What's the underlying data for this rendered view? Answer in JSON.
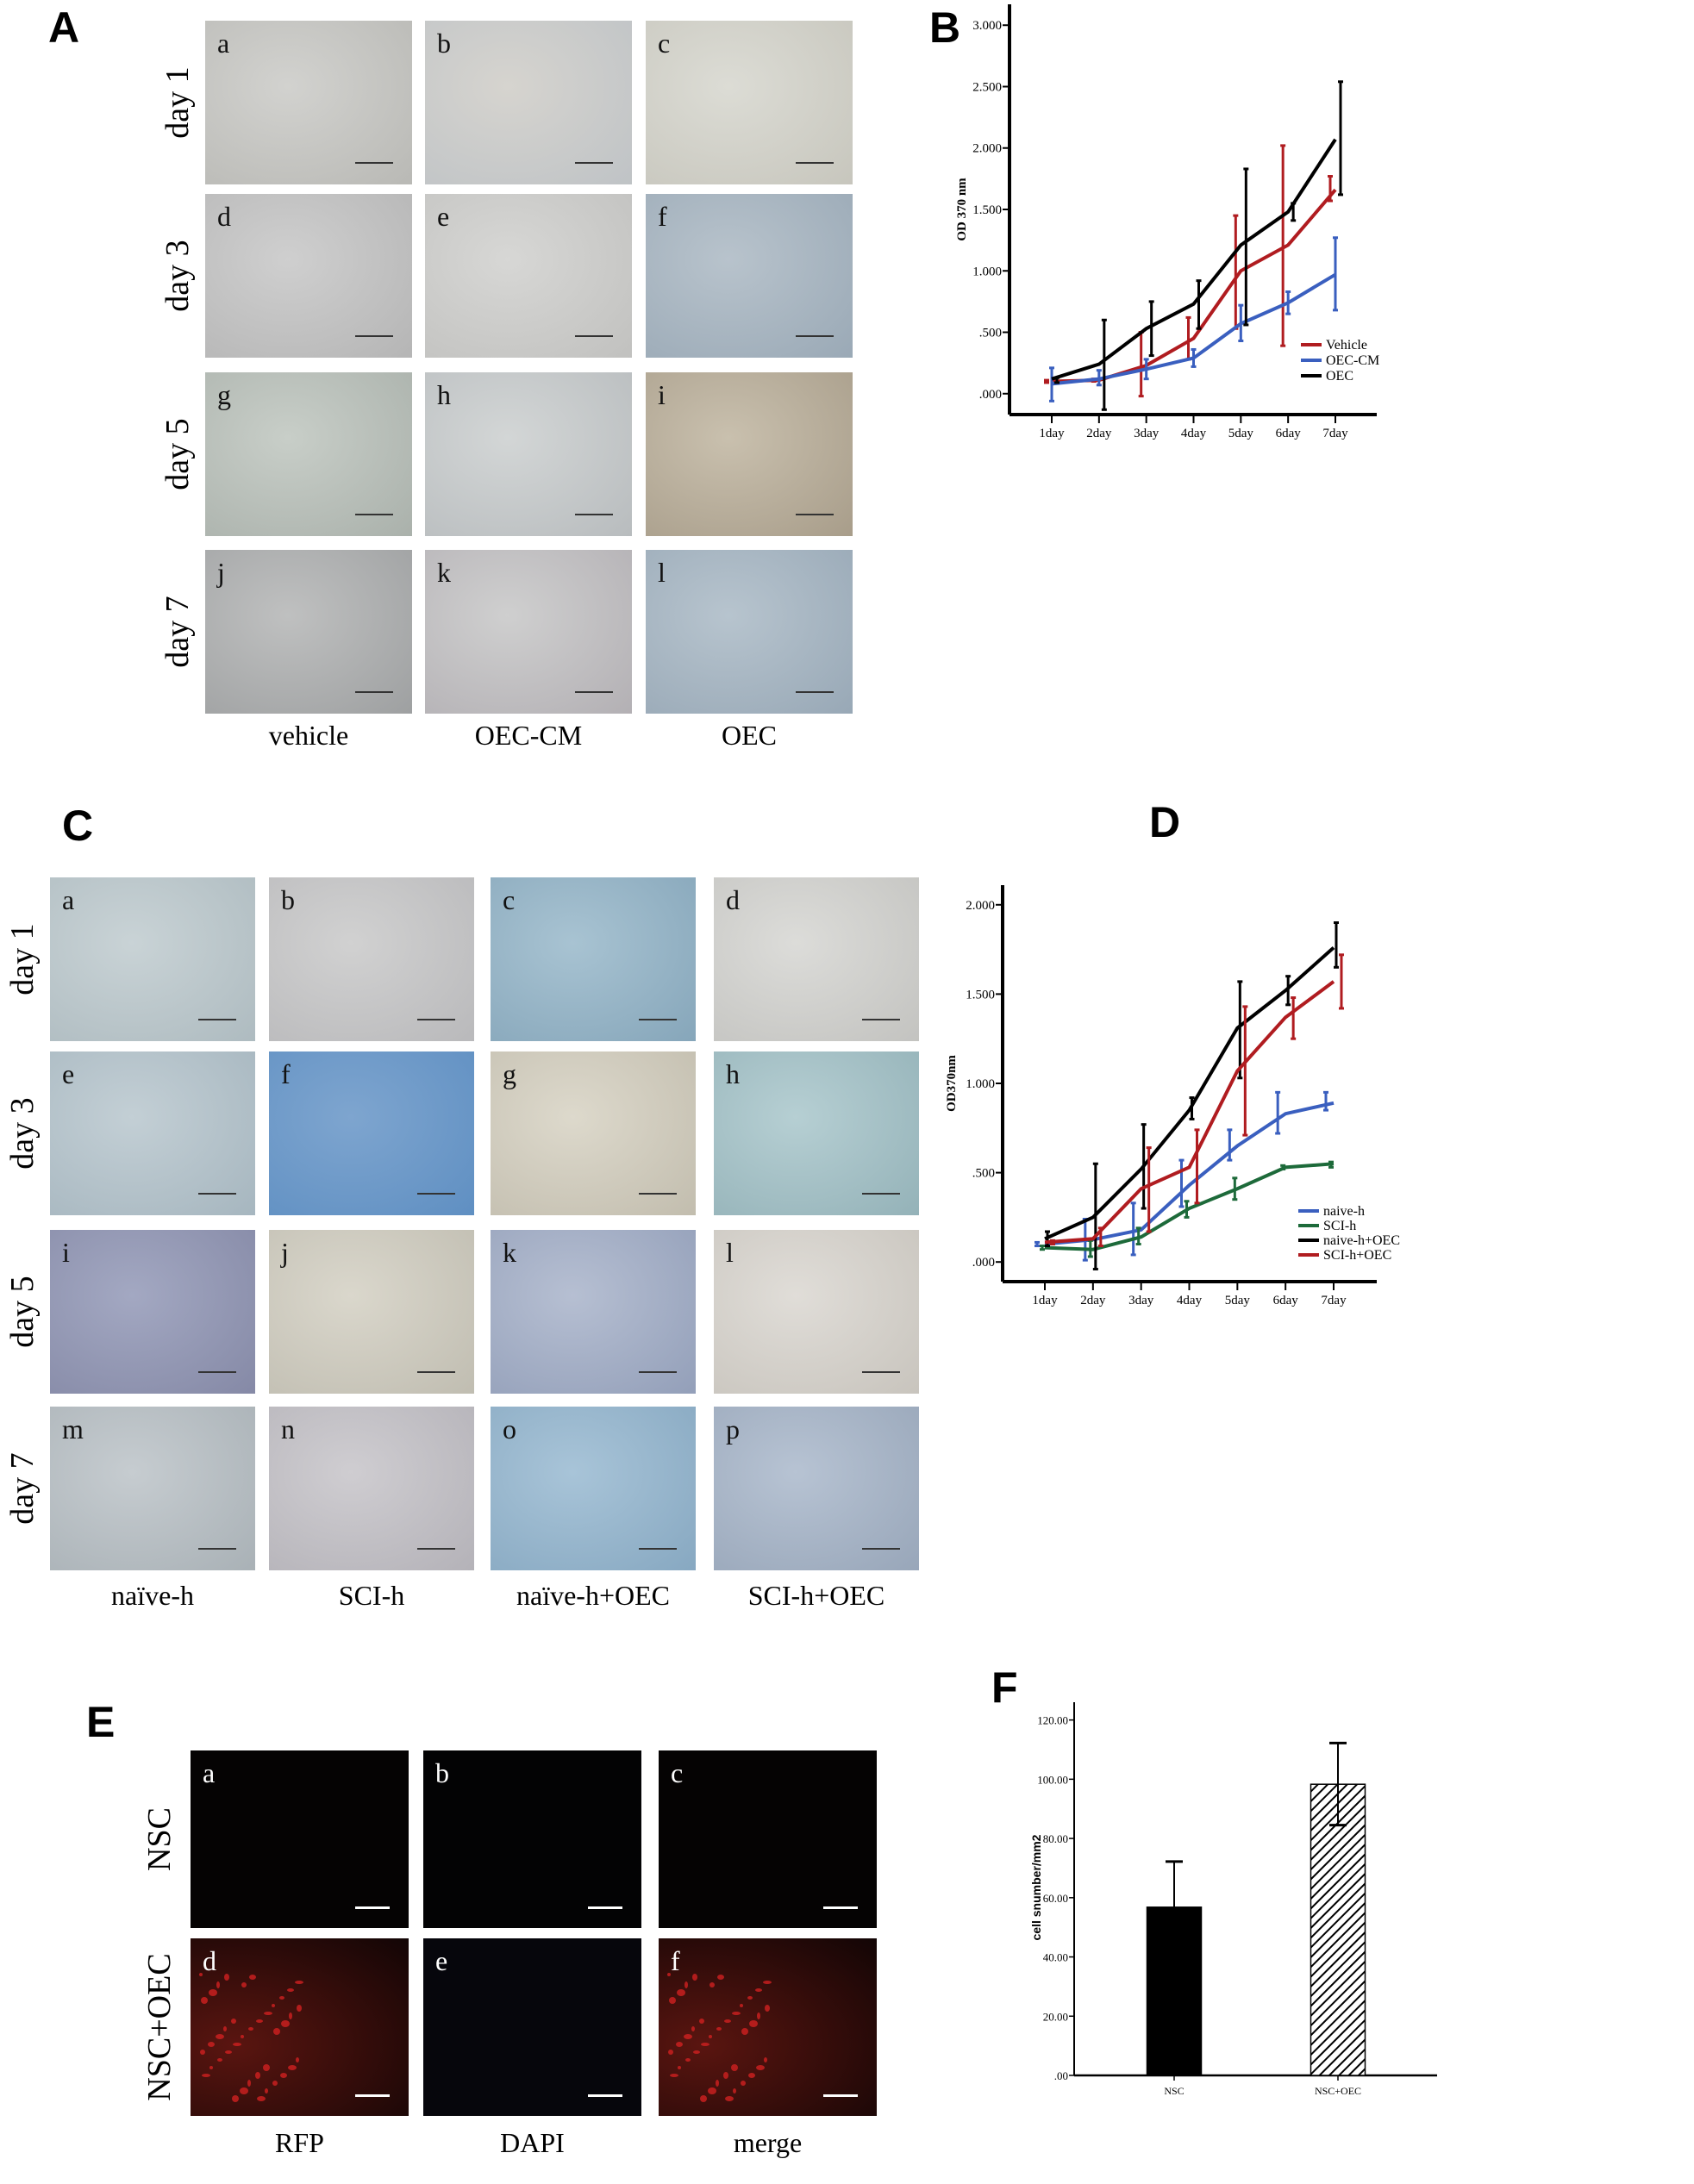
{
  "panel_A": {
    "label": "A",
    "rows": [
      "day 1",
      "day 3",
      "day 5",
      "day 7"
    ],
    "columns": [
      "vehicle",
      "OEC-CM",
      "OEC"
    ],
    "letters": [
      "a",
      "b",
      "c",
      "d",
      "e",
      "f",
      "g",
      "h",
      "i",
      "j",
      "k",
      "l"
    ]
  },
  "panel_B": {
    "label": "B"
  },
  "panel_C": {
    "label": "C",
    "rows": [
      "day 1",
      "day 3",
      "day 5",
      "day 7"
    ],
    "columns": [
      "naïve-h",
      "SCI-h",
      "naïve-h+OEC",
      "SCI-h+OEC"
    ],
    "letters": [
      "a",
      "b",
      "c",
      "d",
      "e",
      "f",
      "g",
      "h",
      "i",
      "j",
      "k",
      "l",
      "m",
      "n",
      "o",
      "p"
    ]
  },
  "panel_D": {
    "label": "D"
  },
  "panel_E": {
    "label": "E",
    "rows": [
      "NSC",
      "NSC+OEC"
    ],
    "columns": [
      "RFP",
      "DAPI",
      "merge"
    ],
    "letters": [
      "a",
      "b",
      "c",
      "d",
      "e",
      "f"
    ]
  },
  "panel_F": {
    "label": "F"
  },
  "chart_data": [
    {
      "panel": "B",
      "type": "line",
      "ylabel": "OD 370 nm",
      "xlabel": "",
      "categories": [
        "1day",
        "2day",
        "3day",
        "4day",
        "5day",
        "6day",
        "7day"
      ],
      "yticks": [
        ".000",
        ".500",
        "1.000",
        "1.500",
        "2.000",
        "2.500",
        "3.000"
      ],
      "ytick_values": [
        0,
        0.5,
        1,
        1.5,
        2,
        2.5,
        3
      ],
      "ylim": [
        -0.17,
        3.17
      ],
      "legend_position": "bottom-right",
      "series": [
        {
          "name": "Vehicle",
          "color": "#b01c20",
          "values": [
            0.1,
            0.11,
            0.23,
            0.45,
            1.0,
            1.21,
            1.66
          ],
          "err_low": [
            0.09,
            0.1,
            -0.02,
            0.28,
            0.53,
            0.39,
            1.57
          ],
          "err_high": [
            0.11,
            0.12,
            0.5,
            0.62,
            1.45,
            2.02,
            1.77
          ]
        },
        {
          "name": "OEC-CM",
          "color": "#3a5fbf",
          "values": [
            0.08,
            0.12,
            0.2,
            0.29,
            0.57,
            0.74,
            0.97
          ],
          "err_low": [
            -0.06,
            0.07,
            0.12,
            0.22,
            0.43,
            0.65,
            0.68
          ],
          "err_high": [
            0.21,
            0.19,
            0.28,
            0.36,
            0.72,
            0.83,
            1.27
          ]
        },
        {
          "name": "OEC",
          "color": "#000000",
          "values": [
            0.12,
            0.24,
            0.53,
            0.73,
            1.21,
            1.48,
            2.07
          ],
          "err_low": [
            0.09,
            -0.13,
            0.31,
            0.53,
            0.56,
            1.41,
            1.62
          ],
          "err_high": [
            0.13,
            0.6,
            0.75,
            0.92,
            1.83,
            1.55,
            2.54
          ]
        }
      ]
    },
    {
      "panel": "D",
      "type": "line",
      "ylabel": "OD370nm",
      "xlabel": "",
      "categories": [
        "1day",
        "2day",
        "3day",
        "4day",
        "5day",
        "6day",
        "7day"
      ],
      "yticks": [
        ".000",
        ".500",
        "1.000",
        "1.500",
        "2.000"
      ],
      "ytick_values": [
        0,
        0.5,
        1,
        1.5,
        2
      ],
      "ylim": [
        -0.11,
        2.11
      ],
      "legend_position": "bottom-right",
      "series": [
        {
          "name": "naive-h",
          "color": "#3a5fbf",
          "values": [
            0.1,
            0.125,
            0.18,
            0.43,
            0.65,
            0.83,
            0.89
          ],
          "err_low": [
            0.09,
            0.01,
            0.04,
            0.31,
            0.57,
            0.72,
            0.85
          ],
          "err_high": [
            0.11,
            0.24,
            0.33,
            0.57,
            0.74,
            0.95,
            0.95
          ]
        },
        {
          "name": "SCI-h",
          "color": "#1d6a3a",
          "values": [
            0.08,
            0.07,
            0.14,
            0.3,
            0.41,
            0.53,
            0.55
          ],
          "err_low": [
            0.07,
            0.03,
            0.1,
            0.25,
            0.35,
            0.52,
            0.53
          ],
          "err_high": [
            0.09,
            0.12,
            0.19,
            0.34,
            0.47,
            0.54,
            0.56
          ]
        },
        {
          "name": "naive-h+OEC",
          "color": "#000000",
          "values": [
            0.13,
            0.25,
            0.52,
            0.85,
            1.31,
            1.52,
            1.76
          ],
          "err_low": [
            0.09,
            -0.04,
            0.3,
            0.8,
            1.03,
            1.44,
            1.65
          ],
          "err_high": [
            0.17,
            0.55,
            0.77,
            0.92,
            1.57,
            1.6,
            1.9
          ]
        },
        {
          "name": "SCI-h+OEC",
          "color": "#b01c20",
          "values": [
            0.11,
            0.13,
            0.41,
            0.53,
            1.07,
            1.37,
            1.57
          ],
          "err_low": [
            0.1,
            0.09,
            0.17,
            0.33,
            0.71,
            1.25,
            1.42
          ],
          "err_high": [
            0.12,
            0.19,
            0.64,
            0.74,
            1.43,
            1.48,
            1.72
          ]
        }
      ]
    },
    {
      "panel": "F",
      "type": "bar",
      "ylabel": "cell snumber/mm2",
      "xlabel": "",
      "categories": [
        "NSC",
        "NSC+OEC"
      ],
      "values": [
        56.8,
        98.3
      ],
      "err_low": [
        56.8,
        84.5
      ],
      "err_high": [
        72.2,
        112.2
      ],
      "fills": [
        "solid-black",
        "diagonal-hatch"
      ],
      "yticks": [
        ".00",
        "20.00",
        "40.00",
        "60.00",
        "80.00",
        "100.00",
        "120.00"
      ],
      "ytick_values": [
        0,
        20,
        40,
        60,
        80,
        100,
        120
      ],
      "ylim": [
        0,
        126
      ]
    }
  ]
}
